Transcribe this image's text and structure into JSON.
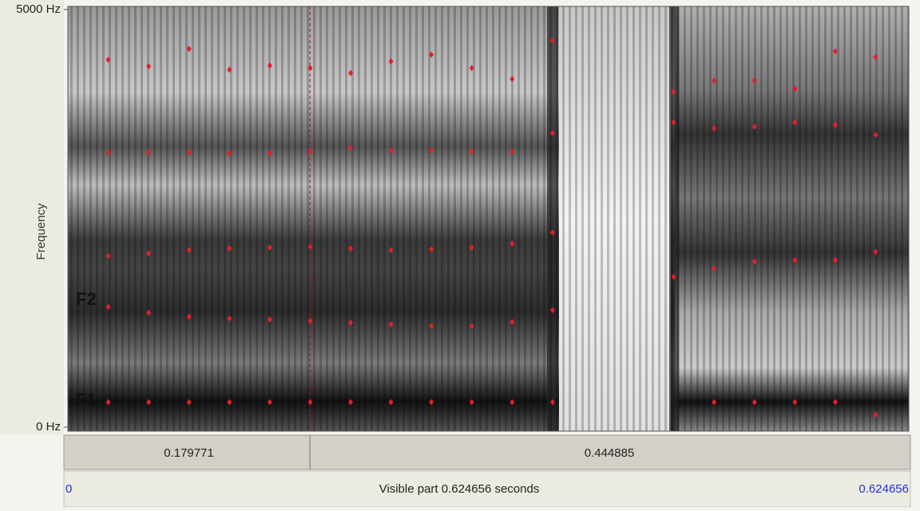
{
  "spectrogram": {
    "yticks": [
      {
        "value": 5000,
        "label": "5000 Hz"
      },
      {
        "value": 0,
        "label": "0 Hz"
      }
    ],
    "ylim": [
      0,
      5000
    ],
    "y_label": "Frequency",
    "times": [
      0.03,
      0.06,
      0.09,
      0.12,
      0.15,
      0.18,
      0.21,
      0.24,
      0.27,
      0.3,
      0.33,
      0.36,
      0.39,
      0.42,
      0.45,
      0.48,
      0.51,
      0.54,
      0.57,
      0.6
    ],
    "formants": [
      {
        "label": "F1",
        "values": [
          300,
          300,
          300,
          300,
          300,
          300,
          300,
          300,
          300,
          300,
          300,
          300,
          null,
          null,
          null,
          300,
          300,
          300,
          300,
          150
        ]
      },
      {
        "label": "F2",
        "values": [
          1440,
          1370,
          1320,
          1300,
          1290,
          1270,
          1250,
          1230,
          1210,
          1210,
          1260,
          1400,
          null,
          null,
          null,
          null,
          null,
          null,
          null,
          null
        ]
      },
      {
        "values": [
          2050,
          2080,
          2120,
          2140,
          2150,
          2160,
          2140,
          2120,
          2130,
          2150,
          2200,
          2330,
          null,
          null,
          1800,
          1900,
          1980,
          2000,
          2000,
          2100
        ]
      },
      {
        "values": [
          3290,
          3290,
          3290,
          3280,
          3280,
          3300,
          3350,
          3310,
          3310,
          3300,
          3300,
          3520,
          null,
          null,
          3650,
          3580,
          3600,
          3650,
          3620,
          3500
        ]
      },
      {
        "values": [
          4400,
          4320,
          4530,
          4280,
          4330,
          4300,
          4240,
          4380,
          4460,
          4300,
          4170,
          4630,
          null,
          null,
          4020,
          4150,
          4150,
          4050,
          4500,
          4430
        ]
      }
    ]
  },
  "selection_bar": {
    "left_duration": 0.179771,
    "right_duration": 0.444885
  },
  "visible_bar": {
    "start": 0,
    "text": "Visible part 0.624656 seconds",
    "end": 0.624656
  }
}
